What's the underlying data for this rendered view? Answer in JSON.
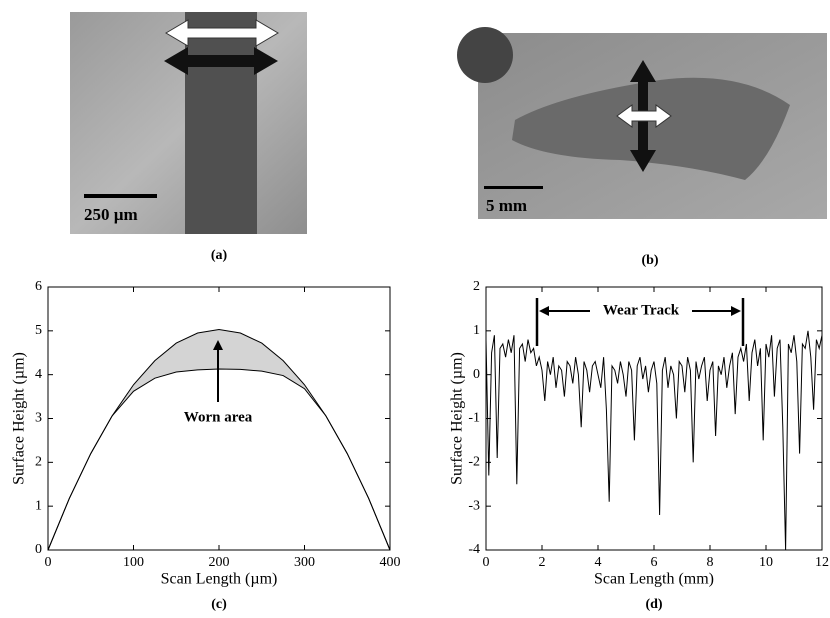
{
  "panels": [
    {
      "caption": "(a)",
      "scale_bar": "250 µm"
    },
    {
      "caption": "(b)",
      "scale_bar": "5 mm"
    }
  ],
  "chart_data": [
    {
      "type": "line",
      "caption": "(c)",
      "x_label": "Scan Length (µm)",
      "y_label": "Surface Height (µm)",
      "annotation": "Worn area",
      "x": [
        0,
        25,
        50,
        75,
        100,
        125,
        150,
        175,
        200,
        225,
        250,
        275,
        300,
        325,
        350,
        375,
        400
      ],
      "series": [
        {
          "color": "#000000",
          "values": [
            0,
            1.18,
            2.2,
            3.06,
            3.77,
            4.32,
            4.72,
            4.95,
            5.03,
            4.95,
            4.72,
            4.32,
            3.77,
            3.06,
            2.2,
            1.18,
            0
          ]
        },
        {
          "color": "#000000",
          "values": [
            0,
            1.18,
            2.2,
            3.06,
            3.62,
            3.92,
            4.06,
            4.11,
            4.13,
            4.12,
            4.08,
            3.98,
            3.68,
            3.06,
            2.2,
            1.18,
            0
          ]
        }
      ],
      "fill_between_color": "#d4d4d4",
      "xlim": [
        0,
        400
      ],
      "ylim": [
        0,
        6
      ],
      "xticks": [
        0,
        100,
        200,
        300,
        400
      ],
      "yticks": [
        0,
        1,
        2,
        3,
        4,
        5,
        6
      ]
    },
    {
      "type": "line",
      "caption": "(d)",
      "x_label": "Scan Length (mm)",
      "y_label": "Surface Height (µm)",
      "annotation": "Wear Track",
      "x": [
        0,
        0.1,
        0.2,
        0.3,
        0.4,
        0.5,
        0.6,
        0.7,
        0.8,
        0.9,
        1,
        1.1,
        1.2,
        1.3,
        1.4,
        1.5,
        1.6,
        1.7,
        1.8,
        1.9,
        2,
        2.1,
        2.2,
        2.3,
        2.4,
        2.5,
        2.6,
        2.7,
        2.8,
        2.9,
        3,
        3.1,
        3.2,
        3.3,
        3.4,
        3.5,
        3.6,
        3.7,
        3.8,
        3.9,
        4,
        4.1,
        4.2,
        4.3,
        4.4,
        4.5,
        4.6,
        4.7,
        4.8,
        4.9,
        5,
        5.1,
        5.2,
        5.3,
        5.4,
        5.5,
        5.6,
        5.7,
        5.8,
        5.9,
        6,
        6.1,
        6.2,
        6.3,
        6.4,
        6.5,
        6.6,
        6.7,
        6.8,
        6.9,
        7,
        7.1,
        7.2,
        7.3,
        7.4,
        7.5,
        7.6,
        7.7,
        7.8,
        7.9,
        8,
        8.1,
        8.2,
        8.3,
        8.4,
        8.5,
        8.6,
        8.7,
        8.8,
        8.9,
        9,
        9.1,
        9.2,
        9.3,
        9.4,
        9.5,
        9.6,
        9.7,
        9.8,
        9.9,
        10,
        10.1,
        10.2,
        10.3,
        10.4,
        10.5,
        10.6,
        10.7,
        10.8,
        10.9,
        11,
        11.1,
        11.2,
        11.3,
        11.4,
        11.5,
        11.6,
        11.7,
        11.8,
        11.9,
        12
      ],
      "series": [
        {
          "color": "#000000",
          "values": [
            0.8,
            -2.3,
            0.5,
            0.9,
            -1.9,
            0.6,
            0.7,
            0.4,
            0.8,
            0.5,
            0.9,
            -2.5,
            0.6,
            0.7,
            0.3,
            0.8,
            0.5,
            0.6,
            0.2,
            0.4,
            0.1,
            -0.6,
            0.3,
            0.0,
            0.4,
            -0.3,
            0.2,
            0.1,
            -0.5,
            0.3,
            0.2,
            -0.2,
            0.4,
            0.0,
            -1.2,
            0.3,
            0.1,
            -0.4,
            0.2,
            0.3,
            0.0,
            -0.3,
            0.4,
            -0.8,
            -2.9,
            0.2,
            0.1,
            -0.2,
            0.3,
            0.0,
            -0.5,
            0.3,
            0.1,
            -1.5,
            0.2,
            0.4,
            -0.1,
            0.2,
            -0.4,
            0.1,
            0.3,
            -0.2,
            -3.2,
            0.1,
            0.4,
            -0.3,
            0.2,
            0.0,
            -1.0,
            0.3,
            0.2,
            -0.4,
            0.4,
            0.1,
            -2.0,
            0.3,
            -0.1,
            0.2,
            0.4,
            -0.6,
            0.1,
            0.3,
            -1.4,
            0.2,
            0.0,
            0.4,
            -0.3,
            0.2,
            0.5,
            -0.9,
            0.4,
            0.6,
            0.3,
            0.7,
            -0.6,
            0.5,
            0.8,
            0.2,
            0.6,
            -1.5,
            0.7,
            0.4,
            0.9,
            -0.5,
            0.6,
            0.8,
            -1.2,
            -4.0,
            0.7,
            0.5,
            0.9,
            0.3,
            -1.8,
            0.7,
            0.6,
            1.0,
            0.4,
            -0.8,
            0.8,
            0.6,
            0.9
          ]
        }
      ],
      "xlim": [
        0,
        12
      ],
      "ylim": [
        -4,
        2
      ],
      "xticks": [
        0,
        2,
        4,
        6,
        8,
        10,
        12
      ],
      "yticks": [
        -4,
        -3,
        -2,
        -1,
        0,
        1,
        2
      ]
    }
  ]
}
